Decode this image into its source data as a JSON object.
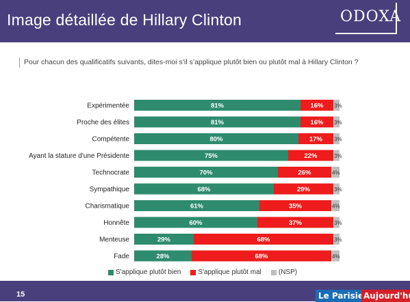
{
  "header": {
    "title": "Image détaillée de Hillary Clinton",
    "brand": "ODOXA"
  },
  "question": "Pour chacun des qualificatifs suivants, dites-moi s’il s’applique plutôt bien ou plutôt mal à Hillary Clinton ?",
  "footer": {
    "page_number": "15",
    "logo_left": "Le Parisien",
    "logo_right": "Aujourd'hui"
  },
  "colors": {
    "bien": "#2e8b6e",
    "mal": "#ee1c1c",
    "nsp": "#bfbfbf",
    "header": "#4a3f7d"
  },
  "chart_data": {
    "type": "bar",
    "orientation": "horizontal",
    "stacked": true,
    "categories": [
      "Expérimentée",
      "Proche des élites",
      "Compétente",
      "Ayant la stature d'une Présidente",
      "Technocrate",
      "Sympathique",
      "Charismatique",
      "Honnête",
      "Menteuse",
      "Fade"
    ],
    "series": [
      {
        "name": "S'applique plutôt bien",
        "values": [
          81,
          81,
          80,
          75,
          70,
          68,
          61,
          60,
          29,
          28
        ],
        "labels": [
          "81%",
          "81%",
          "80%",
          "75%",
          "70%",
          "68%",
          "61%",
          "60%",
          "29%",
          "28%"
        ]
      },
      {
        "name": "S'applique plutôt mal",
        "values": [
          16,
          16,
          17,
          22,
          26,
          29,
          35,
          37,
          68,
          68
        ],
        "labels": [
          "16%",
          "16%",
          "17%",
          "22%",
          "26%",
          "29%",
          "35%",
          "37%",
          "68%",
          "68%"
        ]
      },
      {
        "name": "(NSP)",
        "values": [
          3,
          3,
          3,
          3,
          4,
          3,
          4,
          3,
          3,
          4
        ],
        "labels": [
          "3%",
          "3%",
          "3%",
          "3%",
          "4%",
          "3%",
          "4%",
          "3%",
          "3%",
          "4%"
        ]
      }
    ],
    "legend": "bottom"
  }
}
